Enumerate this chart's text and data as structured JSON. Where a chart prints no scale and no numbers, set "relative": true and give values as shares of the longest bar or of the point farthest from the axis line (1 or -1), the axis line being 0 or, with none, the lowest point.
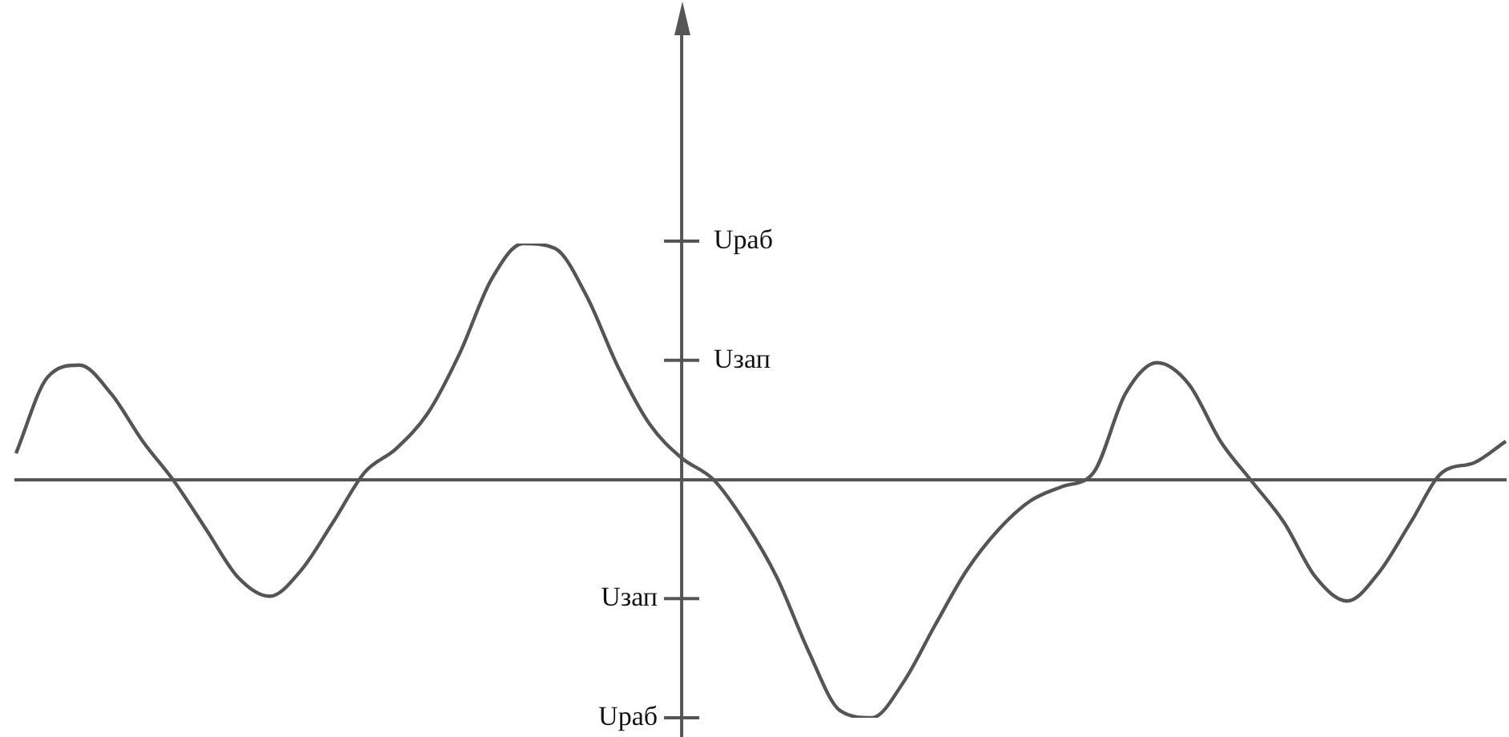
{
  "chart_data": {
    "type": "line",
    "relative": true,
    "categories": [
      null,
      null,
      null,
      null,
      null,
      null,
      null,
      null,
      null,
      null,
      null,
      null,
      null,
      null,
      null,
      null,
      null,
      null,
      null,
      null,
      null,
      null,
      null,
      null,
      null,
      null,
      null,
      null,
      null,
      null,
      null,
      null,
      null,
      null,
      null,
      null,
      null,
      null,
      null,
      null,
      null,
      null,
      null,
      null,
      null,
      null,
      null,
      null
    ],
    "series": [
      {
        "color": "#555555",
        "values": [
          0.11,
          0.43,
          0.48,
          0.36,
          0.16,
          -0.01,
          -0.21,
          -0.41,
          -0.49,
          -0.38,
          -0.18,
          0.03,
          0.13,
          0.28,
          0.53,
          0.84,
          0.99,
          0.97,
          0.77,
          0.47,
          0.23,
          0.09,
          0,
          -0.18,
          -0.41,
          -0.72,
          -0.97,
          -1.0,
          -0.85,
          -0.61,
          -0.38,
          -0.21,
          -0.09,
          -0.03,
          0.03,
          0.36,
          0.49,
          0.4,
          0.16,
          -0.01,
          -0.18,
          -0.41,
          -0.51,
          -0.39,
          -0.18,
          0.03,
          0.07,
          0.16
        ]
      }
    ],
    "ref_lines": [
      {
        "axis": "y",
        "value": 1,
        "label": "Uраб"
      },
      {
        "axis": "y",
        "value": 0.5,
        "label": "Uзап"
      },
      {
        "axis": "y",
        "value": -0.5,
        "label": "Uзап"
      },
      {
        "axis": "y",
        "value": -1,
        "label": "Uраб"
      }
    ],
    "tick_labels": false,
    "marker": "none",
    "line_style": "solid"
  }
}
